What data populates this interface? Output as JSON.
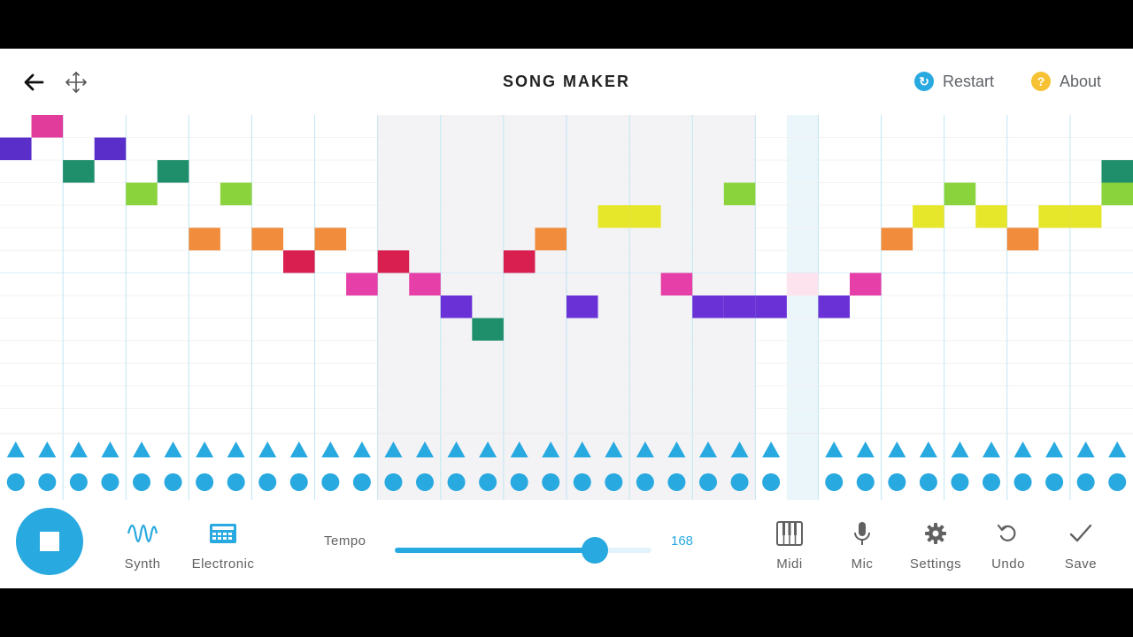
{
  "header": {
    "title": "SONG MAKER",
    "restart_label": "Restart",
    "about_label": "About",
    "restart_icon": "restart-icon",
    "about_icon": "question-icon"
  },
  "toolbar": {
    "instrument_label": "Synth",
    "percussion_label": "Electronic",
    "tempo_label": "Tempo",
    "tempo_value": "168",
    "tempo_fraction": 0.78,
    "midi_label": "Midi",
    "mic_label": "Mic",
    "settings_label": "Settings",
    "undo_label": "Undo",
    "save_label": "Save"
  },
  "colors": {
    "accent": "#28a9e0",
    "note_colors": [
      "#e13b9c",
      "#5a2fc9",
      "#1f8f6b",
      "#8bd33c",
      "#f08c3c",
      "#d81f4f",
      "#e63fa7",
      "#e6e62a",
      "#6a32d6",
      "#e84fb1"
    ]
  },
  "melody": {
    "columns": 36,
    "rows": 14,
    "playhead_column": 25,
    "notes": [
      [
        0,
        1,
        1
      ],
      [
        1,
        0,
        0
      ],
      [
        2,
        2,
        2
      ],
      [
        3,
        1,
        1
      ],
      [
        4,
        3,
        3
      ],
      [
        5,
        2,
        2
      ],
      [
        6,
        5,
        4
      ],
      [
        7,
        3,
        3
      ],
      [
        8,
        5,
        4
      ],
      [
        9,
        6,
        5
      ],
      [
        10,
        5,
        4
      ],
      [
        11,
        7,
        6
      ],
      [
        12,
        6,
        5
      ],
      [
        13,
        7,
        6
      ],
      [
        14,
        8,
        8
      ],
      [
        15,
        9,
        2
      ],
      [
        16,
        6,
        5
      ],
      [
        17,
        5,
        4
      ],
      [
        18,
        8,
        8
      ],
      [
        19,
        4,
        7
      ],
      [
        20,
        4,
        7
      ],
      [
        21,
        7,
        6
      ],
      [
        23,
        3,
        3
      ],
      [
        22,
        8,
        8
      ],
      [
        23,
        8,
        8
      ],
      [
        24,
        8,
        8
      ],
      [
        26,
        8,
        8
      ],
      [
        27,
        7,
        6
      ],
      [
        28,
        5,
        4
      ],
      [
        29,
        4,
        7
      ],
      [
        30,
        3,
        3
      ],
      [
        31,
        4,
        7
      ],
      [
        32,
        5,
        4
      ],
      [
        33,
        4,
        7
      ],
      [
        34,
        4,
        7
      ],
      [
        35,
        2,
        2
      ],
      [
        35,
        3,
        3
      ]
    ]
  },
  "rhythm": {
    "columns": 36,
    "muted_column": 25
  }
}
